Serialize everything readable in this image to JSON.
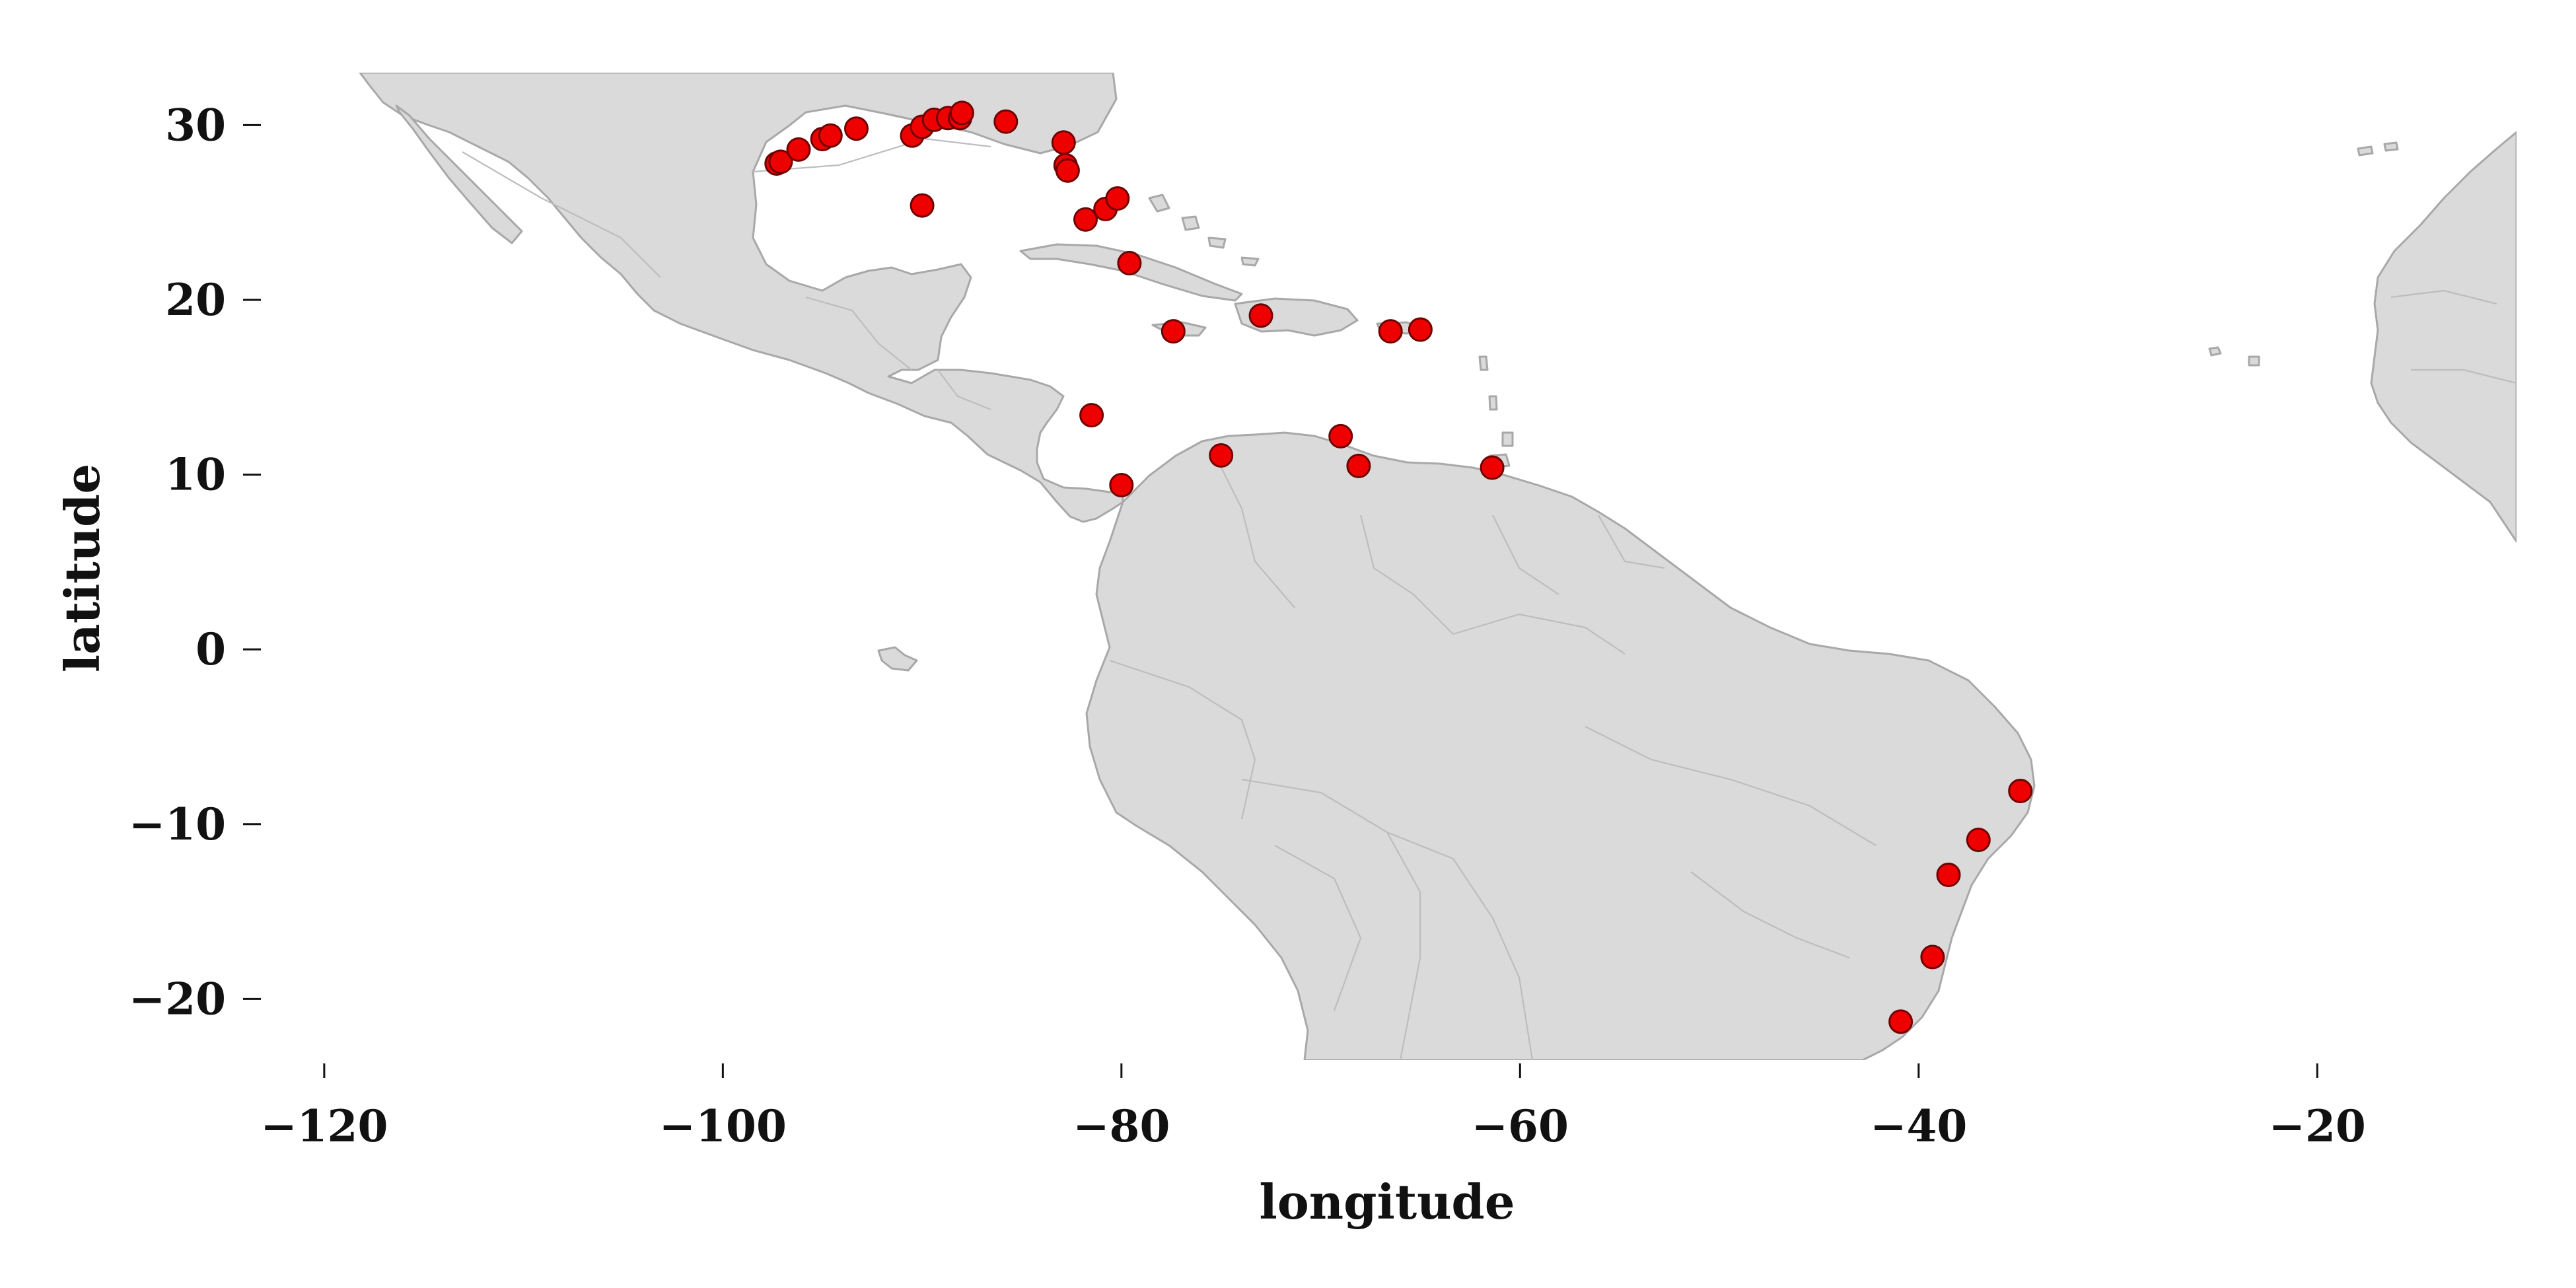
{
  "chart_data": {
    "type": "scatter",
    "xlabel": "longitude",
    "ylabel": "latitude",
    "xlim": [
      -125,
      -10
    ],
    "ylim": [
      -23.5,
      33
    ],
    "xticks": [
      -120,
      -100,
      -80,
      -60,
      -40,
      -20
    ],
    "yticks": [
      30,
      20,
      10,
      0,
      -10,
      -20
    ],
    "xtick_labels": [
      "−120",
      "−100",
      "−80",
      "−60",
      "−40",
      "−20"
    ],
    "ytick_labels": [
      "30",
      "20",
      "10",
      "0",
      "−10",
      "−20"
    ],
    "land_color": "#dadada",
    "border_color": "#a8a8a8",
    "point_color": "#ee0000",
    "grid": false,
    "series": [
      {
        "points": [
          {
            "lon": -97.3,
            "lat": 27.8
          },
          {
            "lon": -97.1,
            "lat": 27.9
          },
          {
            "lon": -96.2,
            "lat": 28.6
          },
          {
            "lon": -95.0,
            "lat": 29.2
          },
          {
            "lon": -94.6,
            "lat": 29.4
          },
          {
            "lon": -93.3,
            "lat": 29.8
          },
          {
            "lon": -90.5,
            "lat": 29.4
          },
          {
            "lon": -90.0,
            "lat": 29.9
          },
          {
            "lon": -89.4,
            "lat": 30.3
          },
          {
            "lon": -88.7,
            "lat": 30.4
          },
          {
            "lon": -88.1,
            "lat": 30.4
          },
          {
            "lon": -88.0,
            "lat": 30.7
          },
          {
            "lon": -85.8,
            "lat": 30.2
          },
          {
            "lon": -90.0,
            "lat": 25.4
          },
          {
            "lon": -82.9,
            "lat": 29.0
          },
          {
            "lon": -82.8,
            "lat": 27.7
          },
          {
            "lon": -82.7,
            "lat": 27.4
          },
          {
            "lon": -81.8,
            "lat": 24.6
          },
          {
            "lon": -80.8,
            "lat": 25.2
          },
          {
            "lon": -80.2,
            "lat": 25.8
          },
          {
            "lon": -79.6,
            "lat": 22.1
          },
          {
            "lon": -77.4,
            "lat": 18.2
          },
          {
            "lon": -73.0,
            "lat": 19.1
          },
          {
            "lon": -66.5,
            "lat": 18.2
          },
          {
            "lon": -65.0,
            "lat": 18.3
          },
          {
            "lon": -81.5,
            "lat": 13.4
          },
          {
            "lon": -75.0,
            "lat": 11.1
          },
          {
            "lon": -69.0,
            "lat": 12.2
          },
          {
            "lon": -68.1,
            "lat": 10.5
          },
          {
            "lon": -61.4,
            "lat": 10.4
          },
          {
            "lon": -80.0,
            "lat": 9.4
          },
          {
            "lon": -34.9,
            "lat": -8.1
          },
          {
            "lon": -37.0,
            "lat": -10.9
          },
          {
            "lon": -38.5,
            "lat": -12.9
          },
          {
            "lon": -39.3,
            "lat": -17.6
          },
          {
            "lon": -40.9,
            "lat": -21.3
          }
        ]
      }
    ]
  }
}
